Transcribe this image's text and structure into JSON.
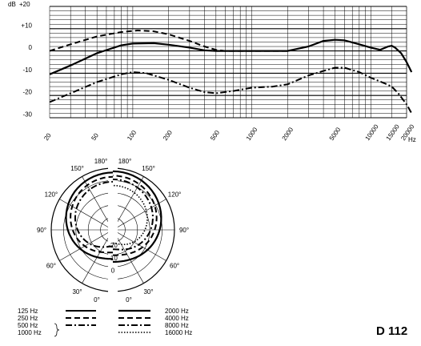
{
  "chart_data": [
    {
      "type": "line",
      "x_scale": "log",
      "xlim": [
        20,
        20000
      ],
      "ylim": [
        -30,
        20
      ],
      "y_unit_label": "dB",
      "x_unit_label": "Hz",
      "x_ticks": [
        20,
        50,
        100,
        200,
        500,
        1000,
        2000,
        5000,
        10000,
        15000,
        20000
      ],
      "x_tick_labels": [
        "20",
        "50",
        "100",
        "200",
        "500",
        "1000",
        "2000",
        "5000",
        "10000",
        "15000",
        "20000"
      ],
      "y_ticks": [
        20,
        10,
        0,
        -10,
        -20,
        -30
      ],
      "y_tick_labels": [
        "+20",
        "+10",
        "0",
        "-10",
        "-20",
        "-30"
      ],
      "grid": true,
      "series": [
        {
          "style": "dashed",
          "points": [
            [
              20,
              0
            ],
            [
              30,
              3
            ],
            [
              50,
              6.5
            ],
            [
              80,
              8.5
            ],
            [
              110,
              9.2
            ],
            [
              150,
              8.8
            ],
            [
              200,
              7.5
            ],
            [
              300,
              4.5
            ],
            [
              400,
              2
            ],
            [
              500,
              0.5
            ],
            [
              600,
              0
            ],
            [
              1000,
              0
            ],
            [
              2000,
              0
            ]
          ]
        },
        {
          "style": "solid",
          "points": [
            [
              20,
              -10.5
            ],
            [
              30,
              -6.5
            ],
            [
              50,
              -1
            ],
            [
              80,
              2.5
            ],
            [
              100,
              3.3
            ],
            [
              150,
              3.5
            ],
            [
              200,
              2.8
            ],
            [
              300,
              1.5
            ],
            [
              400,
              0.3
            ],
            [
              500,
              0
            ],
            [
              1000,
              0
            ],
            [
              2000,
              0
            ],
            [
              3000,
              2
            ],
            [
              4000,
              4.5
            ],
            [
              5000,
              5
            ],
            [
              6000,
              4.8
            ],
            [
              8000,
              3
            ],
            [
              10000,
              1.5
            ],
            [
              12000,
              0.5
            ],
            [
              14000,
              2
            ],
            [
              15000,
              2.3
            ],
            [
              16000,
              1.5
            ],
            [
              18000,
              -1
            ],
            [
              20000,
              -5
            ],
            [
              22000,
              -9.5
            ]
          ]
        },
        {
          "style": "dash-dot",
          "points": [
            [
              20,
              -23
            ],
            [
              30,
              -19
            ],
            [
              50,
              -14
            ],
            [
              80,
              -10.5
            ],
            [
              100,
              -9.5
            ],
            [
              130,
              -10
            ],
            [
              200,
              -13
            ],
            [
              300,
              -16.5
            ],
            [
              400,
              -18.5
            ],
            [
              500,
              -19
            ],
            [
              700,
              -18
            ],
            [
              1000,
              -16.5
            ],
            [
              1500,
              -16
            ],
            [
              2000,
              -15
            ],
            [
              3000,
              -11
            ],
            [
              4000,
              -9
            ],
            [
              5000,
              -7.5
            ],
            [
              6000,
              -7.5
            ],
            [
              8000,
              -9.5
            ],
            [
              10000,
              -12
            ],
            [
              13000,
              -14.5
            ],
            [
              15000,
              -16
            ],
            [
              17000,
              -19
            ],
            [
              20000,
              -24
            ],
            [
              22000,
              -28
            ]
          ]
        }
      ]
    },
    {
      "type": "polar",
      "r_scale_db": [
        -20,
        -10,
        0
      ],
      "angle_labels": {
        "top": [
          "180°",
          "180°"
        ],
        "left": [
          "150°",
          "120°",
          "90°",
          "60°",
          "30°",
          "0°"
        ],
        "right": [
          "150°",
          "120°",
          "90°",
          "60°",
          "30°",
          "0°"
        ]
      },
      "legend": [
        {
          "label": "125 Hz",
          "style": "solid",
          "side": "left"
        },
        {
          "label": "250 Hz",
          "style": "dashed",
          "side": "left"
        },
        {
          "label": "500 Hz",
          "style": "dash-dot",
          "side": "left"
        },
        {
          "label": "1000 Hz",
          "style": "dash-dot",
          "side": "left"
        },
        {
          "label": "2000 Hz",
          "style": "solid",
          "side": "right"
        },
        {
          "label": "4000 Hz",
          "style": "dashed",
          "side": "right"
        },
        {
          "label": "8000 Hz",
          "style": "dash-dot",
          "side": "right"
        },
        {
          "label": "16000 Hz",
          "style": "dotted",
          "side": "right"
        }
      ]
    }
  ],
  "model_label": "D 112"
}
